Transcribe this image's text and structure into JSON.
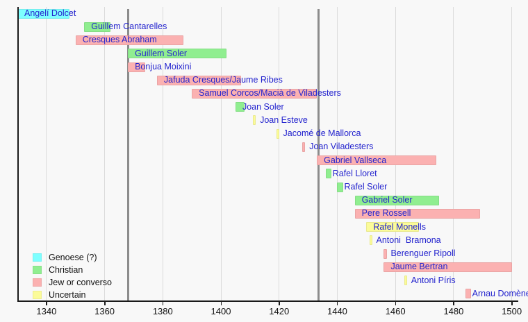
{
  "styles": {
    "background": "#F8F8F8",
    "label_color": "#2424CE",
    "axis_color": "#1A1A1A",
    "gridline_color": "#DBDBDB",
    "event_line_color": "#8C8C8C",
    "tick_label_color": "#111111",
    "legend_label_color": "#111111"
  },
  "chart_data": {
    "type": "bar",
    "subtype": "horizontal-timeline-gantt",
    "title": "",
    "xlabel": "",
    "ylabel": "",
    "grid": true,
    "legend_position": "bottom-left",
    "x_axis": {
      "min": 1330,
      "max": 1502,
      "ticks": [
        1340,
        1360,
        1380,
        1400,
        1420,
        1440,
        1460,
        1480,
        1500
      ]
    },
    "event_lines": [
      1368,
      1433.5
    ],
    "legend": [
      {
        "key": "genoese",
        "label": "Genoese (?)",
        "color": "#7DFFFF"
      },
      {
        "key": "christian",
        "label": "Christian",
        "color": "#90EE90"
      },
      {
        "key": "jew",
        "label": "Jew or converso",
        "color": "#FBB1B1"
      },
      {
        "key": "uncertain",
        "label": "Uncertain",
        "color": "#FBFB99"
      }
    ],
    "rows": [
      {
        "name": "Angelí Dolcet",
        "category": "genoese",
        "start": 1330,
        "end": 1348
      },
      {
        "name": "Guillem Cantarelles",
        "category": "christian",
        "start": 1353,
        "end": 1362
      },
      {
        "name": "Cresques Abraham",
        "category": "jew",
        "start": 1350,
        "end": 1387
      },
      {
        "name": "Guillem Soler",
        "category": "christian",
        "start": 1368,
        "end": 1402
      },
      {
        "name": "Bonjua Moixini",
        "category": "jew",
        "start": 1368,
        "end": 1374
      },
      {
        "name": "Jafuda Cresques/Jaume Ribes",
        "category": "jew",
        "start": 1378,
        "end": 1407
      },
      {
        "name": "Samuel Corcos/Macià de Viladesters",
        "category": "jew",
        "start": 1390,
        "end": 1433
      },
      {
        "name": "Joan Soler",
        "category": "christian",
        "start": 1405,
        "end": 1408
      },
      {
        "name": "Joan Esteve",
        "category": "uncertain",
        "start": 1411,
        "end": 1412
      },
      {
        "name": "Jacomé de Mallorca",
        "category": "uncertain",
        "start": 1419,
        "end": 1420
      },
      {
        "name": "Joan Viladesters",
        "category": "jew",
        "start": 1428,
        "end": 1429
      },
      {
        "name": "Gabriel Vallseca",
        "category": "jew",
        "start": 1433,
        "end": 1474
      },
      {
        "name": "Rafel Lloret",
        "category": "christian",
        "start": 1436,
        "end": 1438
      },
      {
        "name": "Rafel Soler",
        "category": "christian",
        "start": 1440,
        "end": 1442
      },
      {
        "name": "Gabriel Soler",
        "category": "christian",
        "start": 1446,
        "end": 1475
      },
      {
        "name": "Pere Rossell",
        "category": "jew",
        "start": 1446,
        "end": 1489
      },
      {
        "name": "Rafel Monells",
        "category": "uncertain",
        "start": 1450,
        "end": 1468
      },
      {
        "name": "Antoni  Bramona",
        "category": "uncertain",
        "start": 1451,
        "end": 1452
      },
      {
        "name": "Berenguer Ripoll",
        "category": "jew",
        "start": 1456,
        "end": 1457
      },
      {
        "name": "Jaume Bertran",
        "category": "jew",
        "start": 1456,
        "end": 1500
      },
      {
        "name": "Antoni Píris",
        "category": "uncertain",
        "start": 1463,
        "end": 1464
      },
      {
        "name": "Arnau Domènech",
        "category": "jew",
        "start": 1484,
        "end": 1486
      }
    ]
  }
}
